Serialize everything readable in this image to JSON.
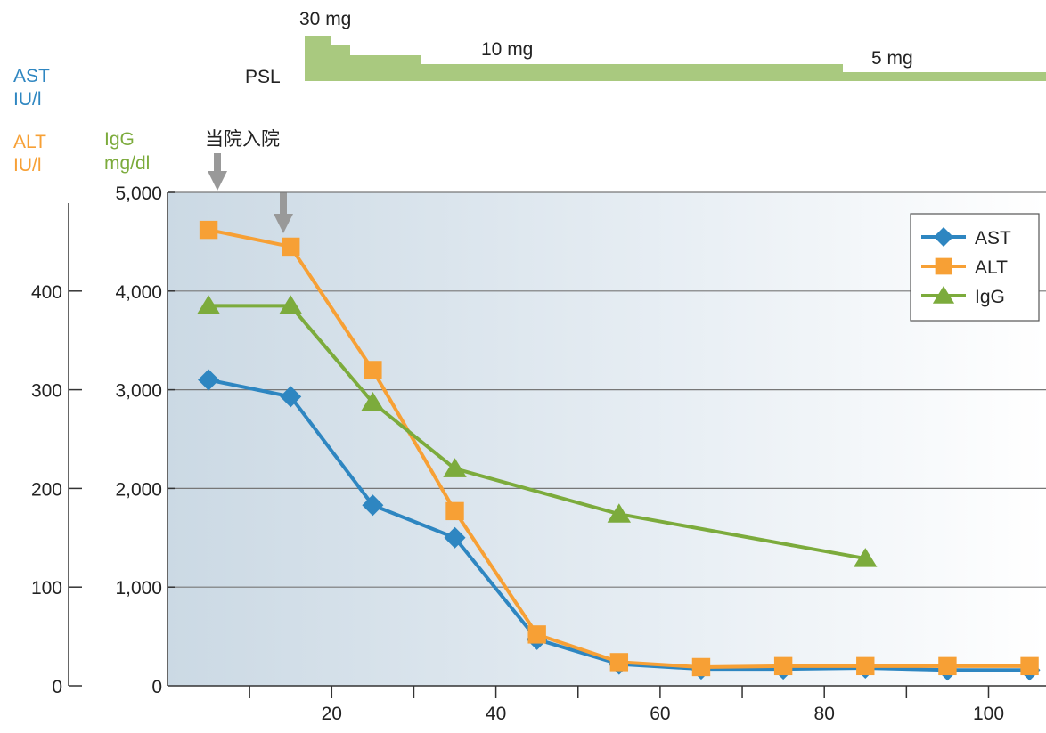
{
  "chart_data": {
    "type": "line",
    "psl": {
      "label": "PSL",
      "doses": [
        "30 mg",
        "10 mg",
        "5 mg"
      ]
    },
    "annotation": "当院入院",
    "axis_left": {
      "labels": [
        {
          "text": "AST",
          "color": "#2e86c1"
        },
        {
          "text": "IU/l",
          "color": "#2e86c1"
        },
        {
          "text": "ALT",
          "color": "#f7a035"
        },
        {
          "text": "IU/l",
          "color": "#f7a035"
        }
      ],
      "range": [
        0,
        500
      ],
      "ticks": [
        0,
        100,
        200,
        300,
        400
      ]
    },
    "axis_right": {
      "labels": [
        {
          "text": "IgG",
          "color": "#7cab3c"
        },
        {
          "text": "mg/dl",
          "color": "#7cab3c"
        }
      ],
      "range": [
        0,
        5000
      ],
      "ticks": [
        "0",
        "1,000",
        "2,000",
        "3,000",
        "4,000",
        "5,000"
      ]
    },
    "x_axis": {
      "range": [
        0,
        107
      ],
      "ticks": [
        20,
        40,
        60,
        80,
        100
      ],
      "minor_ticks": [
        10,
        30,
        50,
        70,
        90
      ]
    },
    "legend": {
      "placement": "top-right",
      "items": [
        "AST",
        "ALT",
        "IgG"
      ]
    },
    "grid": true,
    "series": [
      {
        "name": "AST",
        "color": "#2e86c1",
        "marker": "diamond",
        "x": [
          5,
          15,
          25,
          35,
          45,
          55,
          65,
          75,
          85,
          95,
          105
        ],
        "y": [
          3100,
          2930,
          1830,
          1500,
          470,
          220,
          170,
          170,
          180,
          160,
          160
        ]
      },
      {
        "name": "ALT",
        "color": "#f7a035",
        "marker": "square",
        "x": [
          5,
          15,
          25,
          35,
          45,
          55,
          65,
          75,
          85,
          95,
          105
        ],
        "y": [
          4620,
          4450,
          3200,
          1770,
          520,
          240,
          190,
          200,
          200,
          200,
          200
        ]
      },
      {
        "name": "IgG",
        "color": "#7cab3c",
        "marker": "triangle",
        "x": [
          5,
          15,
          25,
          35,
          55,
          85
        ],
        "y": [
          3850,
          3850,
          2870,
          2200,
          1740,
          1290
        ]
      }
    ]
  }
}
